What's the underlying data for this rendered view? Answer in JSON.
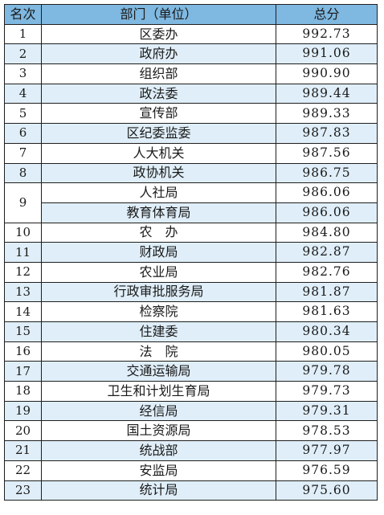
{
  "table": {
    "headers": {
      "rank": "名次",
      "department": "部门（单位）",
      "score": "总分"
    },
    "rows": [
      {
        "rank": "1",
        "department": "区委办",
        "score": "992.73"
      },
      {
        "rank": "2",
        "department": "政府办",
        "score": "991.06"
      },
      {
        "rank": "3",
        "department": "组织部",
        "score": "990.90"
      },
      {
        "rank": "4",
        "department": "政法委",
        "score": "989.44"
      },
      {
        "rank": "5",
        "department": "宣传部",
        "score": "989.33"
      },
      {
        "rank": "6",
        "department": "区纪委监委",
        "score": "987.83"
      },
      {
        "rank": "7",
        "department": "人大机关",
        "score": "987.56"
      },
      {
        "rank": "8",
        "department": "政协机关",
        "score": "986.75"
      },
      {
        "rank": "9",
        "department": "人社局",
        "score": "986.06"
      },
      {
        "rank": "",
        "department": "教育体育局",
        "score": "986.06"
      },
      {
        "rank": "10",
        "department": "农　办",
        "score": "984.80"
      },
      {
        "rank": "11",
        "department": "财政局",
        "score": "982.87"
      },
      {
        "rank": "12",
        "department": "农业局",
        "score": "982.76"
      },
      {
        "rank": "13",
        "department": "行政审批服务局",
        "score": "981.87"
      },
      {
        "rank": "14",
        "department": "检察院",
        "score": "981.63"
      },
      {
        "rank": "15",
        "department": "住建委",
        "score": "980.34"
      },
      {
        "rank": "16",
        "department": "法　院",
        "score": "980.05"
      },
      {
        "rank": "17",
        "department": "交通运输局",
        "score": "979.78"
      },
      {
        "rank": "18",
        "department": "卫生和计划生育局",
        "score": "979.73"
      },
      {
        "rank": "19",
        "department": "经信局",
        "score": "979.31"
      },
      {
        "rank": "20",
        "department": "国土资源局",
        "score": "978.53"
      },
      {
        "rank": "21",
        "department": "统战部",
        "score": "977.97"
      },
      {
        "rank": "22",
        "department": "安监局",
        "score": "976.59"
      },
      {
        "rank": "23",
        "department": "统计局",
        "score": "975.60"
      }
    ]
  }
}
